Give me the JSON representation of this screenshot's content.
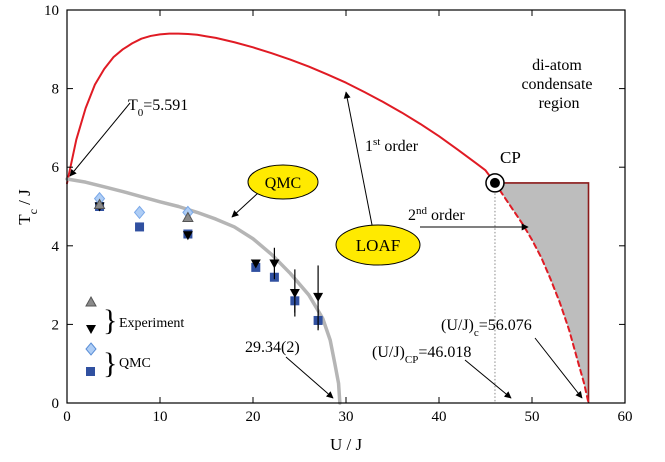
{
  "chart_data": {
    "type": "scatter",
    "xlabel": "U / J",
    "ylabel": {
      "main": "T",
      "sub": "c",
      "tail": " / J"
    },
    "xlim": [
      0,
      60
    ],
    "ylim": [
      0,
      10
    ],
    "xticks": [
      0,
      10,
      20,
      30,
      40,
      50,
      60
    ],
    "yticks": [
      0,
      2,
      4,
      6,
      8,
      10
    ],
    "grid": false,
    "series": [
      {
        "kind": "line",
        "color": "#e01b24",
        "style": "solid",
        "points": [
          [
            0,
            5.59
          ],
          [
            1,
            6.7
          ],
          [
            2,
            7.5
          ],
          [
            3,
            8.1
          ],
          [
            4,
            8.5
          ],
          [
            5,
            8.8
          ],
          [
            6,
            9.0
          ],
          [
            7,
            9.15
          ],
          [
            8,
            9.27
          ],
          [
            9,
            9.34
          ],
          [
            10,
            9.38
          ],
          [
            11,
            9.4
          ],
          [
            12,
            9.4
          ],
          [
            13,
            9.39
          ],
          [
            14,
            9.37
          ],
          [
            15,
            9.33
          ],
          [
            16,
            9.29
          ],
          [
            18,
            9.18
          ],
          [
            20,
            9.05
          ],
          [
            22,
            8.9
          ],
          [
            24,
            8.74
          ],
          [
            26,
            8.56
          ],
          [
            28,
            8.36
          ],
          [
            30,
            8.15
          ],
          [
            32,
            7.91
          ],
          [
            34,
            7.66
          ],
          [
            36,
            7.39
          ],
          [
            38,
            7.1
          ],
          [
            40,
            6.79
          ],
          [
            42,
            6.45
          ],
          [
            44,
            6.1
          ],
          [
            45,
            5.92
          ],
          [
            46.018,
            5.6
          ]
        ]
      },
      {
        "kind": "line",
        "color": "#e01b24",
        "style": "dashed",
        "points": [
          [
            46.018,
            5.6
          ],
          [
            47,
            5.25
          ],
          [
            48,
            4.9
          ],
          [
            49,
            4.55
          ],
          [
            50,
            4.15
          ],
          [
            51,
            3.7
          ],
          [
            52,
            3.15
          ],
          [
            53,
            2.55
          ],
          [
            54,
            1.85
          ],
          [
            55,
            1.0
          ],
          [
            55.6,
            0.5
          ],
          [
            56.076,
            0
          ]
        ]
      },
      {
        "kind": "line",
        "color": "#b5b5b5",
        "style": "solid",
        "name": "QMC",
        "points": [
          [
            0,
            5.7
          ],
          [
            2,
            5.62
          ],
          [
            4,
            5.5
          ],
          [
            6,
            5.38
          ],
          [
            8,
            5.25
          ],
          [
            10,
            5.12
          ],
          [
            12,
            5.0
          ],
          [
            14,
            4.85
          ],
          [
            16,
            4.68
          ],
          [
            18,
            4.48
          ],
          [
            20,
            4.18
          ],
          [
            22,
            3.78
          ],
          [
            24,
            3.3
          ],
          [
            26,
            2.75
          ],
          [
            27.5,
            2.15
          ],
          [
            28.3,
            1.6
          ],
          [
            28.8,
            1.0
          ],
          [
            29.2,
            0.5
          ],
          [
            29.34,
            0
          ]
        ]
      }
    ],
    "markers": {
      "experiment_up": [
        [
          3.5,
          5.05
        ],
        [
          13,
          4.72
        ]
      ],
      "experiment_down": [
        {
          "x": 3.5,
          "y": 5.0
        },
        {
          "x": 13,
          "y": 4.27
        },
        {
          "x": 20.3,
          "y": 3.55
        },
        {
          "x": 22.3,
          "y": 3.55,
          "err": 0.4
        },
        {
          "x": 24.5,
          "y": 2.8,
          "err": 0.6
        },
        {
          "x": 27,
          "y": 2.7,
          "err": 0.8
        }
      ],
      "qmc_diamond": [
        [
          3.5,
          5.2
        ],
        [
          7.8,
          4.85
        ],
        [
          13,
          4.85
        ]
      ],
      "qmc_square": [
        {
          "x": 3.5,
          "y": 5.0
        },
        {
          "x": 7.8,
          "y": 4.48
        },
        {
          "x": 13,
          "y": 4.3
        },
        {
          "x": 20.3,
          "y": 3.45
        },
        {
          "x": 22.3,
          "y": 3.2
        },
        {
          "x": 24.5,
          "y": 2.6,
          "err": 0.3
        },
        {
          "x": 27,
          "y": 2.1,
          "err": 0.25
        }
      ]
    },
    "colors": {
      "experiment": "#555555",
      "experiment_up_fill": "#8a8a8a",
      "qmc_diamond": "#7aa8e8",
      "qmc_square": "#3050a0",
      "region_fill": "#bdbdbd",
      "region_edge": "#8b1a1a",
      "bubble": "#ffea00"
    },
    "region": {
      "label_lines": [
        "di-atom",
        "condensate",
        "region"
      ]
    },
    "critical_point": {
      "label": "CP",
      "x": 46.018,
      "y": 5.6
    },
    "annotations": {
      "t0": {
        "main": "T",
        "sub": "0",
        "tail": "=5.591"
      },
      "first_order": {
        "main": "1",
        "sup": "st",
        "tail": " order"
      },
      "second_order": {
        "main": "2",
        "sup": "nd",
        "tail": " order"
      },
      "u_qmc_zero": "29.34(2)",
      "ucp": {
        "head": "(U/J)",
        "sub": "CP",
        "tail": "=46.018"
      },
      "uc": {
        "head": "(U/J)",
        "sub": "c",
        "tail": "=56.076"
      }
    },
    "bubbles": {
      "qmc": "QMC",
      "loaf": "LOAF"
    },
    "legend": {
      "experiment": "Experiment",
      "qmc": "QMC"
    }
  }
}
